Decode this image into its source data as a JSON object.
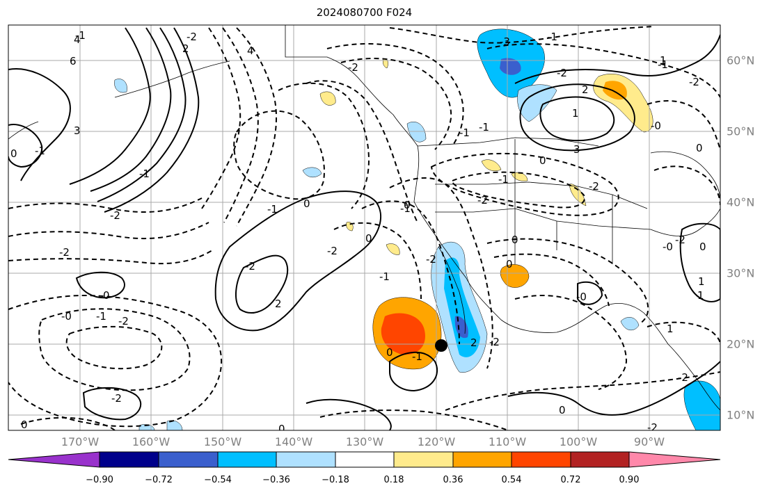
{
  "title": "2024080700 F024",
  "lat_labels": [
    "60°N",
    "50°N",
    "40°N",
    "30°N",
    "20°N",
    "10°N"
  ],
  "lon_labels": [
    "170°W",
    "160°W",
    "150°W",
    "140°W",
    "130°W",
    "120°W",
    "110°W",
    "100°W",
    "90°W"
  ],
  "colorbar": {
    "tick_labels": [
      "−0.90",
      "−0.72",
      "−0.54",
      "−0.36",
      "−0.18",
      "0.18",
      "0.36",
      "0.54",
      "0.72",
      "0.90"
    ],
    "colors": [
      "#9932cc",
      "#00008b",
      "#3a5fcd",
      "#00bfff",
      "#afe1ff",
      "#ffffff",
      "#ffeb8c",
      "#ffa500",
      "#ff4500",
      "#b22222",
      "#ff88aa"
    ]
  },
  "contour_labels": [
    "6",
    "4",
    "4",
    "2",
    "3",
    "-1",
    "0",
    "-1",
    "-3",
    "-2",
    "2",
    "-1",
    "0",
    "-2",
    "-1",
    "0",
    "-2",
    "-1",
    "1",
    "-2",
    "-1",
    "0",
    "0",
    "-1",
    "-2",
    "-2",
    "0",
    "2",
    "0",
    "-2",
    "-1",
    "-2",
    "-0",
    "-1",
    "-2",
    "0",
    "2",
    "-1",
    "1",
    "-2",
    "-0",
    "-0",
    "-2",
    "1",
    "3",
    "0",
    "-2",
    "-1",
    "-2",
    "-2",
    "0",
    "0",
    "-2",
    "-1",
    "-0",
    "-2",
    "0",
    "0",
    "-1",
    "0",
    "-2",
    "1",
    "1"
  ],
  "storm_marker": "tropical-cyclone-position"
}
